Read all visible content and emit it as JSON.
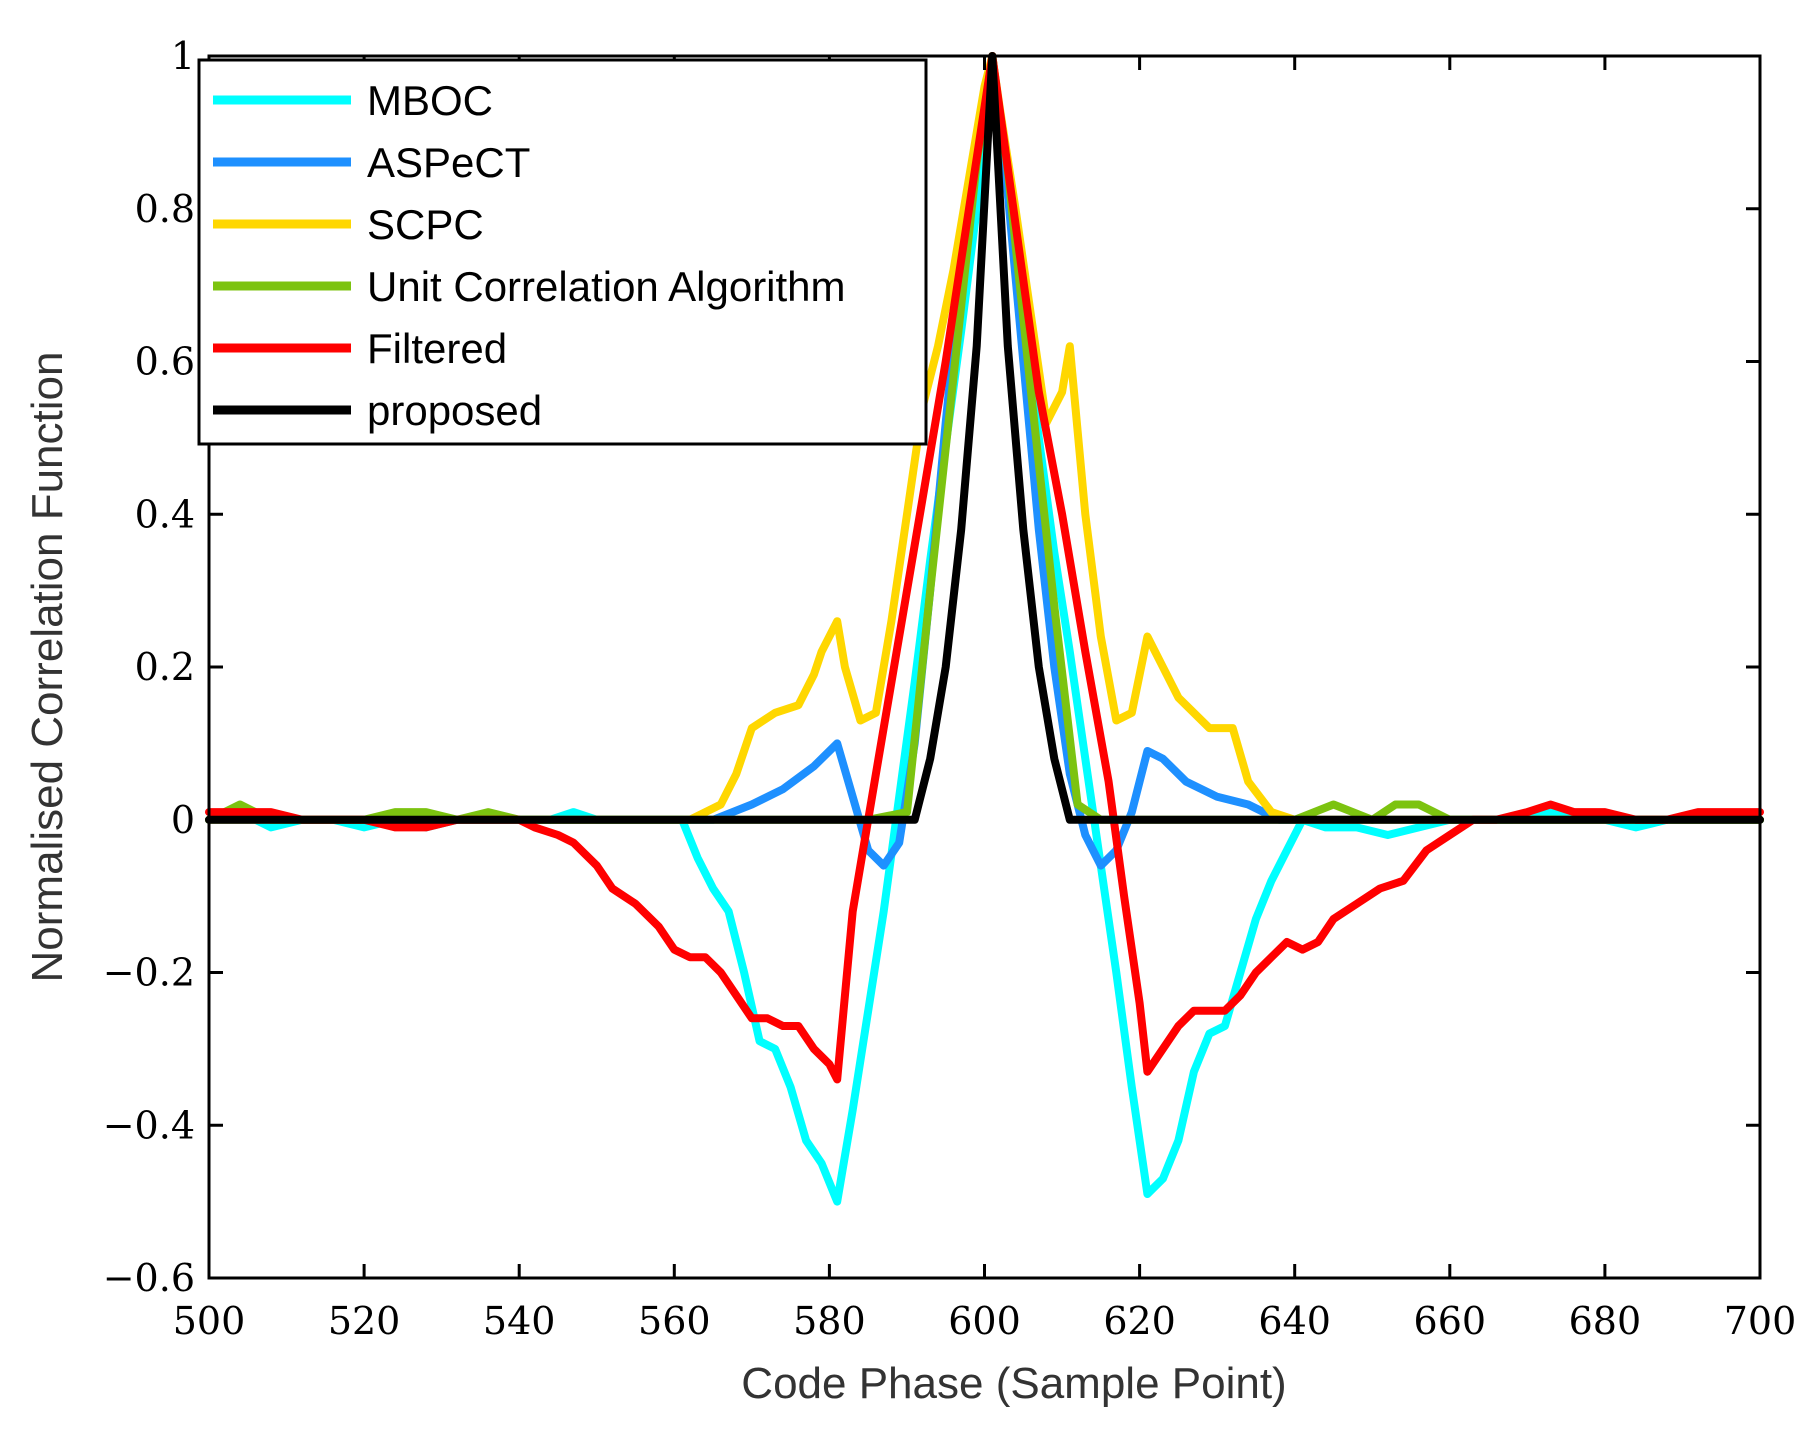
{
  "chart_data": {
    "type": "line",
    "title": "",
    "xlabel": "Code Phase (Sample Point)",
    "ylabel": "Normalised Correlation Function",
    "xlim": [
      500,
      700
    ],
    "ylim": [
      -0.6,
      1
    ],
    "xticks": [
      500,
      520,
      540,
      560,
      580,
      600,
      620,
      640,
      660,
      680,
      700
    ],
    "yticks": [
      -0.6,
      -0.4,
      -0.2,
      0,
      0.2,
      0.4,
      0.6,
      0.8,
      1
    ],
    "xtick_labels": [
      "500",
      "520",
      "540",
      "560",
      "580",
      "600",
      "620",
      "640",
      "660",
      "680",
      "700"
    ],
    "ytick_labels": [
      "−0.6",
      "−0.4",
      "−0.2",
      "0",
      "0.2",
      "0.4",
      "0.6",
      "0.8",
      "1"
    ],
    "grid": false,
    "legend_position": "top-left",
    "series": [
      {
        "name": "MBOC",
        "color": "#00FFFF",
        "x": [
          500,
          504,
          508,
          512,
          516,
          520,
          524,
          528,
          532,
          536,
          540,
          544,
          547,
          550,
          554,
          558,
          561,
          563,
          565,
          567,
          569,
          571,
          573,
          575,
          577,
          579,
          581,
          583,
          585,
          587,
          589,
          591,
          593,
          595,
          597,
          599,
          601,
          603,
          605,
          607,
          609,
          611,
          613,
          615,
          617,
          619,
          621,
          623,
          625,
          627,
          629,
          631,
          633,
          635,
          637,
          639,
          641,
          644,
          648,
          652,
          656,
          660,
          664,
          668,
          672,
          676,
          680,
          684,
          688,
          692,
          696,
          700
        ],
        "y": [
          0.0,
          0.01,
          -0.01,
          0.0,
          0.0,
          -0.01,
          0.0,
          -0.01,
          0.0,
          0.0,
          0.0,
          0.0,
          0.01,
          0.0,
          0.0,
          0.0,
          0.0,
          -0.05,
          -0.09,
          -0.12,
          -0.2,
          -0.29,
          -0.3,
          -0.35,
          -0.42,
          -0.45,
          -0.5,
          -0.38,
          -0.25,
          -0.12,
          0.03,
          0.18,
          0.34,
          0.49,
          0.64,
          0.8,
          1.0,
          0.82,
          0.66,
          0.5,
          0.35,
          0.22,
          0.08,
          -0.06,
          -0.2,
          -0.35,
          -0.49,
          -0.47,
          -0.42,
          -0.33,
          -0.28,
          -0.27,
          -0.2,
          -0.13,
          -0.08,
          -0.04,
          0.0,
          -0.01,
          -0.01,
          -0.02,
          -0.01,
          0.0,
          0.0,
          0.0,
          0.01,
          0.01,
          0.0,
          -0.01,
          0.0,
          0.0,
          0.0,
          0.0
        ]
      },
      {
        "name": "ASPeCT",
        "color": "#1E90FF",
        "x": [
          500,
          560,
          565,
          570,
          574,
          578,
          581,
          583,
          585,
          587,
          589,
          591,
          593,
          595,
          597,
          599,
          601,
          603,
          605,
          607,
          609,
          611,
          613,
          615,
          617,
          619,
          621,
          623,
          626,
          630,
          634,
          638,
          640,
          700
        ],
        "y": [
          0.0,
          0.0,
          0.0,
          0.02,
          0.04,
          0.07,
          0.1,
          0.03,
          -0.04,
          -0.06,
          -0.03,
          0.1,
          0.3,
          0.52,
          0.72,
          0.88,
          1.0,
          0.82,
          0.6,
          0.38,
          0.2,
          0.06,
          -0.02,
          -0.06,
          -0.04,
          0.01,
          0.09,
          0.08,
          0.05,
          0.03,
          0.02,
          0.0,
          0.0,
          0.0
        ]
      },
      {
        "name": "SCPC",
        "color": "#FFD700",
        "x": [
          500,
          562,
          566,
          568,
          570,
          573,
          576,
          578,
          579,
          581,
          582,
          584,
          586,
          588,
          590,
          592,
          594,
          596,
          598,
          600,
          601,
          602,
          604,
          606,
          608,
          610,
          611,
          613,
          615,
          617,
          619,
          621,
          623,
          625,
          629,
          632,
          634,
          637,
          640,
          700
        ],
        "y": [
          0.0,
          0.0,
          0.02,
          0.06,
          0.12,
          0.14,
          0.15,
          0.19,
          0.22,
          0.26,
          0.2,
          0.13,
          0.14,
          0.26,
          0.4,
          0.54,
          0.62,
          0.72,
          0.84,
          0.96,
          1.0,
          0.93,
          0.8,
          0.66,
          0.52,
          0.56,
          0.62,
          0.4,
          0.24,
          0.13,
          0.14,
          0.24,
          0.2,
          0.16,
          0.12,
          0.12,
          0.05,
          0.01,
          0.0,
          0.0
        ]
      },
      {
        "name": "Unit Correlation Algorithm",
        "color": "#7CC310",
        "x": [
          500,
          504,
          508,
          512,
          516,
          520,
          524,
          528,
          532,
          536,
          540,
          545,
          550,
          555,
          560,
          565,
          570,
          575,
          580,
          585,
          590,
          593,
          596,
          599,
          601,
          603,
          606,
          609,
          612,
          615,
          620,
          625,
          630,
          635,
          640,
          645,
          650,
          653,
          656,
          660,
          665,
          670,
          675,
          680,
          685,
          690,
          695,
          700
        ],
        "y": [
          0.0,
          0.02,
          0.0,
          0.0,
          0.0,
          0.0,
          0.01,
          0.01,
          0.0,
          0.01,
          0.0,
          0.0,
          0.0,
          0.0,
          0.0,
          0.0,
          0.0,
          0.0,
          0.0,
          0.0,
          0.01,
          0.3,
          0.58,
          0.86,
          1.0,
          0.85,
          0.56,
          0.28,
          0.02,
          0.0,
          0.0,
          0.0,
          0.0,
          0.0,
          0.0,
          0.02,
          0.0,
          0.02,
          0.02,
          0.0,
          0.0,
          0.0,
          0.0,
          0.0,
          0.0,
          0.0,
          0.0,
          0.0
        ]
      },
      {
        "name": "Filtered",
        "color": "#FF0000",
        "x": [
          500,
          504,
          508,
          512,
          516,
          520,
          524,
          528,
          532,
          536,
          540,
          542,
          545,
          547,
          550,
          552,
          555,
          558,
          560,
          562,
          564,
          566,
          568,
          570,
          572,
          574,
          576,
          578,
          580,
          581,
          583,
          586,
          589,
          592,
          595,
          598,
          601,
          604,
          607,
          610,
          613,
          616,
          618,
          620,
          621,
          623,
          625,
          627,
          629,
          631,
          633,
          635,
          637,
          639,
          641,
          643,
          645,
          648,
          651,
          654,
          657,
          660,
          663,
          666,
          670,
          673,
          676,
          680,
          684,
          688,
          692,
          696,
          700
        ],
        "y": [
          0.01,
          0.01,
          0.01,
          0.0,
          0.0,
          0.0,
          -0.01,
          -0.01,
          0.0,
          0.0,
          0.0,
          -0.01,
          -0.02,
          -0.03,
          -0.06,
          -0.09,
          -0.11,
          -0.14,
          -0.17,
          -0.18,
          -0.18,
          -0.2,
          -0.23,
          -0.26,
          -0.26,
          -0.27,
          -0.27,
          -0.3,
          -0.32,
          -0.34,
          -0.12,
          0.06,
          0.24,
          0.42,
          0.6,
          0.8,
          1.0,
          0.78,
          0.56,
          0.4,
          0.22,
          0.05,
          -0.1,
          -0.24,
          -0.33,
          -0.3,
          -0.27,
          -0.25,
          -0.25,
          -0.25,
          -0.23,
          -0.2,
          -0.18,
          -0.16,
          -0.17,
          -0.16,
          -0.13,
          -0.11,
          -0.09,
          -0.08,
          -0.04,
          -0.02,
          0.0,
          0.0,
          0.01,
          0.02,
          0.01,
          0.01,
          0.0,
          0.0,
          0.01,
          0.01,
          0.01
        ]
      },
      {
        "name": "proposed",
        "color": "#000000",
        "x": [
          500,
          591,
          593,
          595,
          597,
          599,
          601,
          603,
          605,
          607,
          609,
          611,
          700
        ],
        "y": [
          0.0,
          0.0,
          0.08,
          0.2,
          0.38,
          0.62,
          1.0,
          0.62,
          0.38,
          0.2,
          0.08,
          0.0,
          0.0
        ]
      }
    ]
  }
}
